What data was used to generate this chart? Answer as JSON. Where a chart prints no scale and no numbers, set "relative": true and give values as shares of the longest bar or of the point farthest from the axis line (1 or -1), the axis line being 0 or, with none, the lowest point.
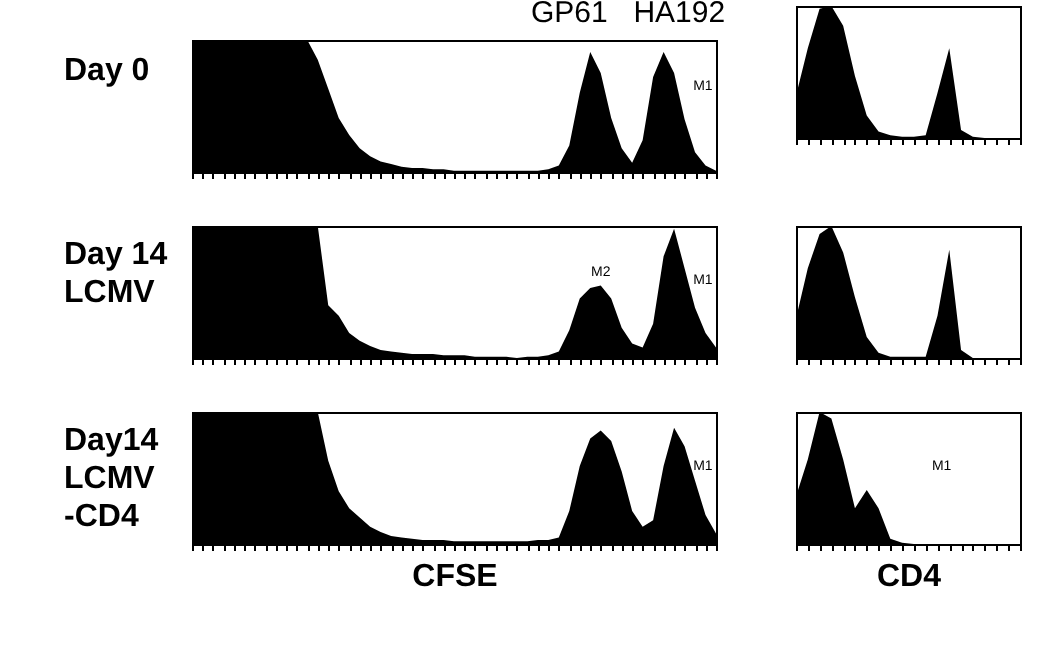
{
  "chart_data": [
    {
      "type": "area",
      "title": "Day 0",
      "relative": true,
      "tick_labels": false,
      "color": "#000000",
      "annotations": [
        "GP61",
        "HA192",
        "M1"
      ],
      "categories": [
        null,
        null,
        null,
        null,
        null,
        null,
        null,
        null,
        null,
        null,
        null,
        null,
        null,
        null,
        null,
        null,
        null,
        null,
        null,
        null,
        null,
        null,
        null,
        null,
        null,
        null,
        null,
        null,
        null,
        null,
        null,
        null,
        null,
        null,
        null,
        null,
        null,
        null,
        null,
        null,
        null,
        null,
        null,
        null,
        null,
        null,
        null,
        null,
        null,
        null,
        null
      ],
      "values": [
        1,
        1,
        1,
        1,
        1,
        1,
        1,
        1,
        1,
        1,
        1,
        1,
        0.85,
        0.63,
        0.41,
        0.28,
        0.18,
        0.12,
        0.08,
        0.06,
        0.04,
        0.03,
        0.03,
        0.02,
        0.02,
        0.01,
        0.01,
        0.01,
        0.01,
        0.01,
        0.01,
        0.01,
        0.01,
        0.01,
        0.02,
        0.05,
        0.2,
        0.6,
        0.91,
        0.75,
        0.41,
        0.18,
        0.07,
        0.24,
        0.72,
        0.91,
        0.75,
        0.4,
        0.15,
        0.05,
        0.01
      ]
    },
    {
      "type": "area",
      "relative": true,
      "tick_labels": false,
      "color": "#000000",
      "categories": [
        null,
        null,
        null,
        null,
        null,
        null,
        null,
        null,
        null,
        null,
        null,
        null,
        null,
        null,
        null,
        null,
        null,
        null,
        null,
        null
      ],
      "values": [
        0.32,
        0.68,
        0.98,
        1,
        0.85,
        0.47,
        0.17,
        0.05,
        0.02,
        0.01,
        0.01,
        0.02,
        0.34,
        0.68,
        0.06,
        0.01,
        0,
        0,
        0,
        0
      ]
    },
    {
      "type": "area",
      "title": "Day 14\nLCMV",
      "relative": true,
      "tick_labels": false,
      "color": "#000000",
      "annotations": [
        "M2",
        "M1"
      ],
      "categories": [
        null,
        null,
        null,
        null,
        null,
        null,
        null,
        null,
        null,
        null,
        null,
        null,
        null,
        null,
        null,
        null,
        null,
        null,
        null,
        null,
        null,
        null,
        null,
        null,
        null,
        null,
        null,
        null,
        null,
        null,
        null,
        null,
        null,
        null,
        null,
        null,
        null,
        null,
        null,
        null,
        null,
        null,
        null,
        null,
        null,
        null,
        null,
        null,
        null,
        null,
        null
      ],
      "values": [
        1,
        1,
        1,
        1,
        1,
        1,
        1,
        1,
        1,
        1,
        1,
        1,
        1,
        0.4,
        0.32,
        0.19,
        0.13,
        0.09,
        0.06,
        0.05,
        0.04,
        0.03,
        0.03,
        0.03,
        0.02,
        0.02,
        0.02,
        0.01,
        0.01,
        0.01,
        0.01,
        0,
        0.01,
        0.01,
        0.02,
        0.05,
        0.21,
        0.45,
        0.53,
        0.55,
        0.45,
        0.23,
        0.11,
        0.08,
        0.26,
        0.77,
        0.98,
        0.68,
        0.38,
        0.19,
        0.08
      ]
    },
    {
      "type": "area",
      "relative": true,
      "tick_labels": false,
      "color": "#000000",
      "categories": [
        null,
        null,
        null,
        null,
        null,
        null,
        null,
        null,
        null,
        null,
        null,
        null,
        null,
        null,
        null,
        null,
        null,
        null,
        null,
        null
      ],
      "values": [
        0.3,
        0.68,
        0.94,
        1,
        0.8,
        0.46,
        0.16,
        0.04,
        0.01,
        0.01,
        0.01,
        0.01,
        0.32,
        0.82,
        0.06,
        0,
        0,
        0,
        0,
        0
      ]
    },
    {
      "type": "area",
      "title": "Day14\nLCMV\n-CD4",
      "xlabel": "CFSE",
      "relative": true,
      "tick_labels": false,
      "color": "#000000",
      "annotations": [
        "M1"
      ],
      "categories": [
        null,
        null,
        null,
        null,
        null,
        null,
        null,
        null,
        null,
        null,
        null,
        null,
        null,
        null,
        null,
        null,
        null,
        null,
        null,
        null,
        null,
        null,
        null,
        null,
        null,
        null,
        null,
        null,
        null,
        null,
        null,
        null,
        null,
        null,
        null,
        null,
        null,
        null,
        null,
        null,
        null,
        null,
        null,
        null,
        null,
        null,
        null,
        null,
        null,
        null,
        null
      ],
      "values": [
        1,
        1,
        1,
        1,
        1,
        1,
        1,
        1,
        1,
        1,
        1,
        1,
        1,
        0.63,
        0.4,
        0.27,
        0.2,
        0.13,
        0.09,
        0.06,
        0.05,
        0.04,
        0.03,
        0.03,
        0.03,
        0.02,
        0.02,
        0.02,
        0.02,
        0.02,
        0.02,
        0.02,
        0.02,
        0.03,
        0.03,
        0.05,
        0.25,
        0.59,
        0.8,
        0.86,
        0.78,
        0.55,
        0.25,
        0.13,
        0.18,
        0.59,
        0.88,
        0.74,
        0.48,
        0.22,
        0.08
      ]
    },
    {
      "type": "area",
      "xlabel": "CD4",
      "relative": true,
      "tick_labels": false,
      "color": "#000000",
      "annotations": [
        "M1"
      ],
      "categories": [
        null,
        null,
        null,
        null,
        null,
        null,
        null,
        null,
        null,
        null,
        null,
        null,
        null,
        null,
        null,
        null,
        null,
        null,
        null,
        null
      ],
      "values": [
        0.36,
        0.64,
        1,
        0.95,
        0.64,
        0.27,
        0.41,
        0.27,
        0.04,
        0.01,
        0,
        0,
        0,
        0,
        0,
        0,
        0,
        0,
        0,
        0
      ]
    }
  ]
}
